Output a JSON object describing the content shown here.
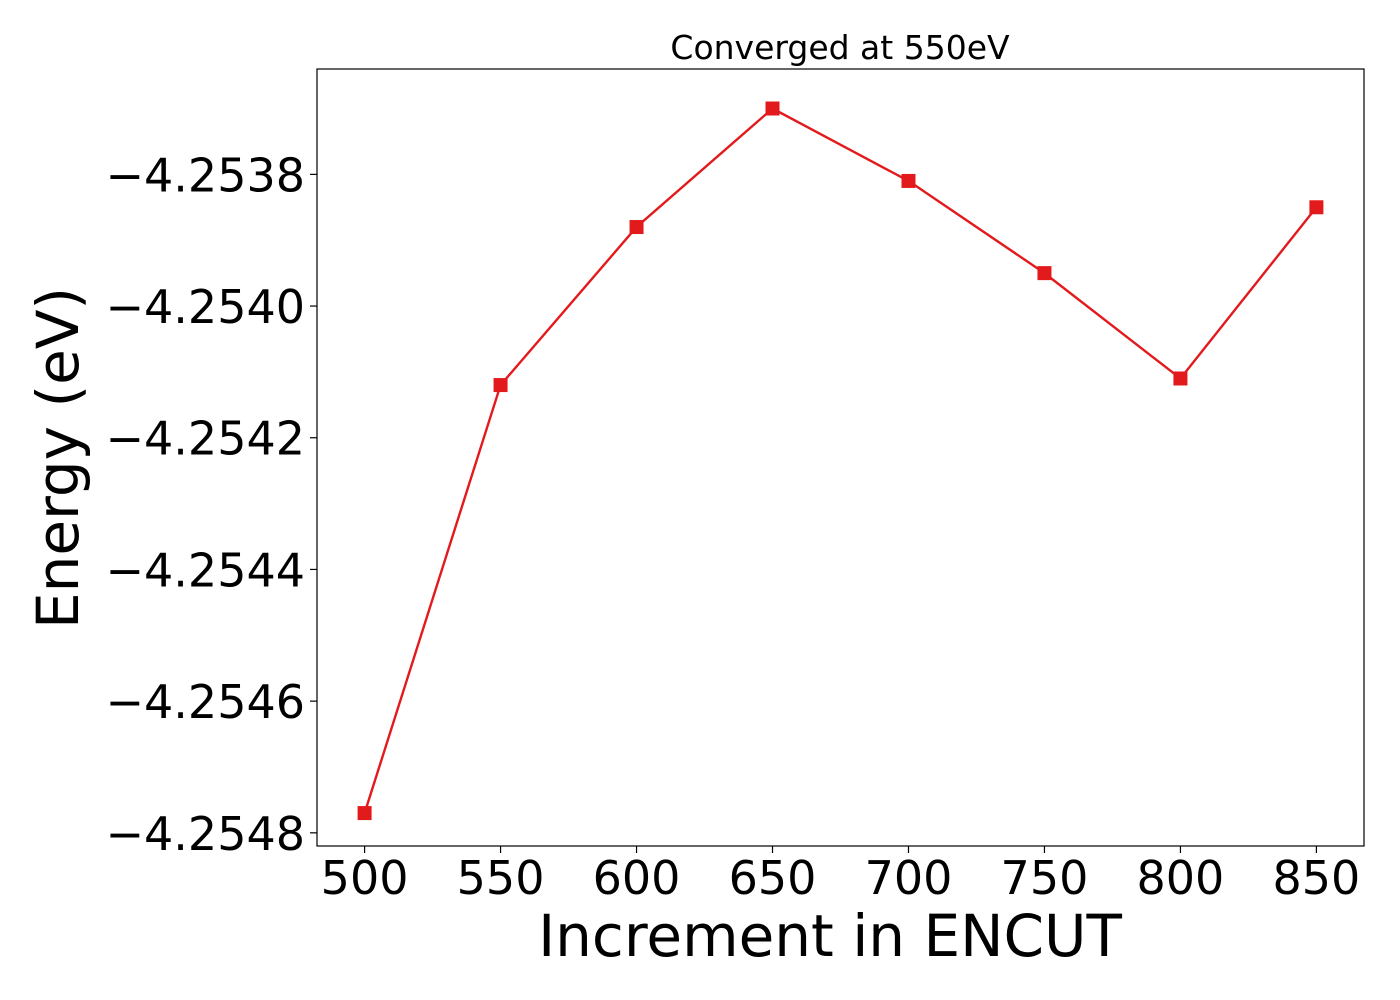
{
  "chart_data": {
    "type": "line",
    "title": "Converged at 550eV",
    "xlabel": "Increment in ENCUT",
    "ylabel": "Energy (eV)",
    "x": [
      500,
      550,
      600,
      650,
      700,
      750,
      800,
      850
    ],
    "series": [
      {
        "values": [
          -4.25477,
          -4.25412,
          -4.25388,
          -4.2537,
          -4.25381,
          -4.25395,
          -4.25411,
          -4.25385
        ],
        "color": "#e31a1c",
        "marker": "square"
      }
    ],
    "xticks": [
      "500",
      "550",
      "600",
      "650",
      "700",
      "750",
      "800",
      "850"
    ],
    "yticks": [
      "−4.2548",
      "−4.2546",
      "−4.2544",
      "−4.2542",
      "−4.2540",
      "−4.2538"
    ],
    "xlim": [
      482.5,
      867.5
    ],
    "ylim": [
      -4.25482,
      -4.25364
    ],
    "grid": false,
    "legend": "none"
  }
}
